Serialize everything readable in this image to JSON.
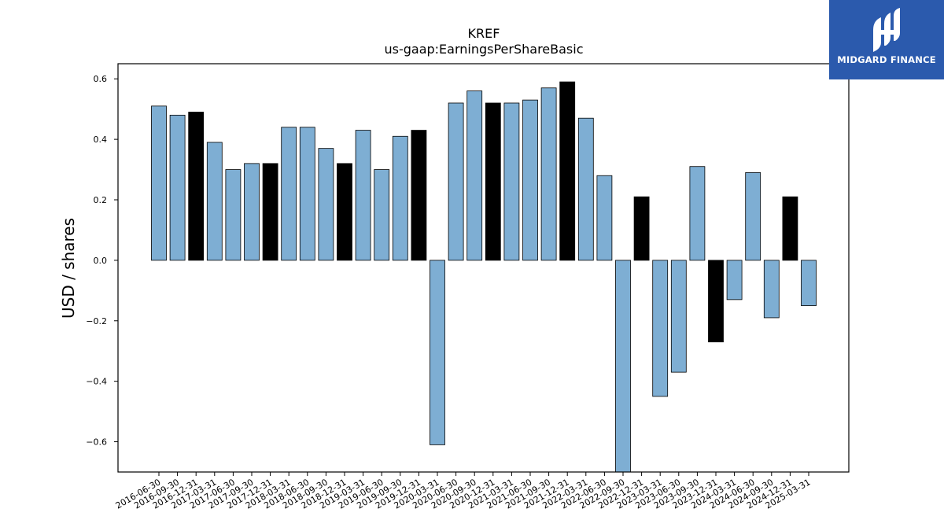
{
  "chart_data": {
    "type": "bar",
    "title": "KREF",
    "subtitle": "us-gaap:EarningsPerShareBasic",
    "xlabel": "",
    "ylabel": "USD / shares",
    "ylim": [
      -0.7,
      0.65
    ],
    "yticks": [
      -0.6,
      -0.4,
      -0.2,
      0.0,
      0.2,
      0.4,
      0.6
    ],
    "ytick_labels": [
      "−0.6",
      "−0.4",
      "−0.2",
      "0.0",
      "0.2",
      "0.4",
      "0.6"
    ],
    "grid": false,
    "categories": [
      "2016-06-30",
      "2016-09-30",
      "2016-12-31",
      "2017-03-31",
      "2017-06-30",
      "2017-09-30",
      "2017-12-31",
      "2018-03-31",
      "2018-06-30",
      "2018-09-30",
      "2018-12-31",
      "2019-03-31",
      "2019-06-30",
      "2019-09-30",
      "2019-12-31",
      "2020-03-31",
      "2020-06-30",
      "2020-09-30",
      "2020-12-31",
      "2021-03-31",
      "2021-06-30",
      "2021-09-30",
      "2021-12-31",
      "2022-03-31",
      "2022-06-30",
      "2022-09-30",
      "2022-12-31",
      "2023-03-31",
      "2023-06-30",
      "2023-09-30",
      "2023-12-31",
      "2024-03-31",
      "2024-06-30",
      "2024-09-30",
      "2024-12-31",
      "2025-03-31"
    ],
    "values": [
      0.51,
      0.48,
      0.49,
      0.39,
      0.3,
      0.32,
      0.32,
      0.44,
      0.44,
      0.37,
      0.32,
      0.43,
      0.3,
      0.41,
      0.43,
      -0.61,
      0.52,
      0.56,
      0.52,
      0.52,
      0.53,
      0.57,
      0.59,
      0.47,
      0.28,
      -0.7,
      0.21,
      -0.45,
      -0.37,
      0.31,
      -0.27,
      -0.13,
      0.29,
      -0.19,
      0.21,
      -0.15
    ],
    "highlight": [
      false,
      false,
      true,
      false,
      false,
      false,
      true,
      false,
      false,
      false,
      true,
      false,
      false,
      false,
      true,
      false,
      false,
      false,
      true,
      false,
      false,
      false,
      true,
      false,
      false,
      false,
      true,
      false,
      false,
      false,
      true,
      false,
      false,
      false,
      true,
      false
    ],
    "colors": {
      "regular": "#7eaed3",
      "highlight": "#000000",
      "edge": "#000000"
    }
  },
  "logo": {
    "text": "MIDGARD FINANCE",
    "background": "#2b5aad"
  }
}
